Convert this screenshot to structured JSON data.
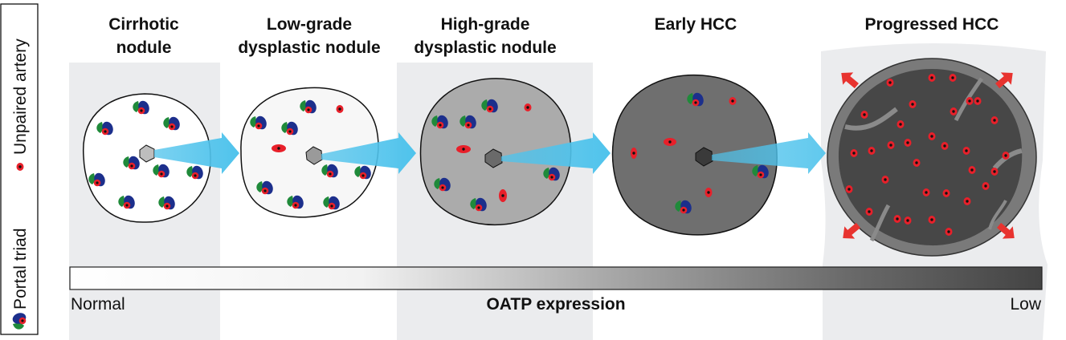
{
  "legend": {
    "portal_triad_label": "Portal triad",
    "unpaired_artery_label": "Unpaired artery"
  },
  "stages": [
    {
      "title_line1": "Cirrhotic",
      "title_line2": "nodule",
      "fill": "#ffffff"
    },
    {
      "title_line1": "Low-grade",
      "title_line2": "dysplastic nodule",
      "fill": "#f7f7f7"
    },
    {
      "title_line1": "High-grade",
      "title_line2": "dysplastic nodule",
      "fill": "#ababab"
    },
    {
      "title_line1": "Early HCC",
      "title_line2": "",
      "fill": "#6f6f6f"
    },
    {
      "title_line1": "Progressed HCC",
      "title_line2": "",
      "fill": "#474747"
    }
  ],
  "scale": {
    "left_label": "Normal",
    "center_label": "OATP expression",
    "right_label": "Low",
    "gradient_start": "#ffffff",
    "gradient_end": "#444444"
  },
  "colors": {
    "panel_bg": "#ebecee",
    "arrow_blue": "#4fc3ec",
    "artery_red": "#e8202a",
    "bile_duct_green": "#1f8a3a",
    "portal_vein_blue": "#1c2f8c"
  }
}
